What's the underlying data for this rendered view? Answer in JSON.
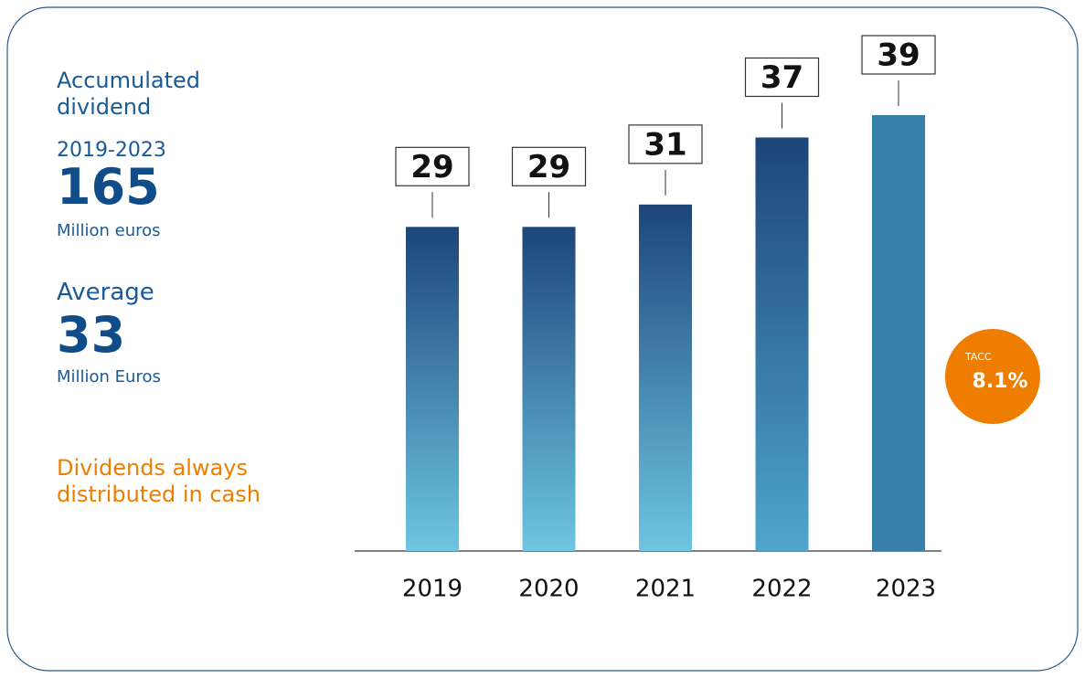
{
  "chart_data": {
    "type": "bar",
    "categories": [
      "2019",
      "2020",
      "2021",
      "2022",
      "2023"
    ],
    "values": [
      29,
      29,
      31,
      37,
      39
    ],
    "bar_colors": [
      [
        "#1d4579",
        "#6dc6e2"
      ],
      [
        "#1d4579",
        "#6dc6e2"
      ],
      [
        "#1d4579",
        "#6dc6e2"
      ],
      [
        "#1d4579",
        "#4ea5cd"
      ],
      [
        "#357fa8",
        "#357fa8"
      ]
    ],
    "annotations": {
      "accumulated_title": "Accumulated dividend",
      "accumulated_period": "2019-2023",
      "accumulated_value": "165",
      "accumulated_unit": "Million euros",
      "average_title": "Average",
      "average_value": "33",
      "average_unit": "Million Euros",
      "note": "Dividends always distributed in cash",
      "badge_title": "TACC",
      "badge_value": "8.1%"
    }
  }
}
